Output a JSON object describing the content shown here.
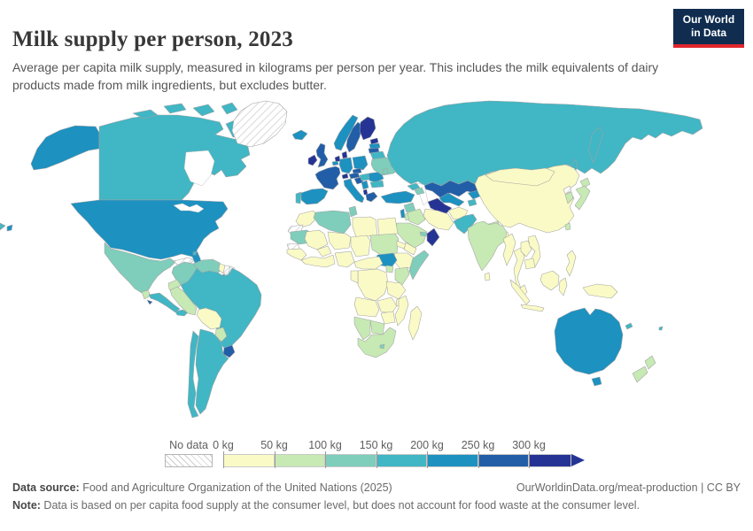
{
  "header": {
    "title": "Milk supply per person, 2023",
    "subtitle": "Average per capita milk supply, measured in kilograms per person per year. This includes the milk equivalents of dairy products made from milk ingredients, but excludes butter.",
    "logo": {
      "line1": "Our World",
      "line2": "in Data",
      "bg_color": "#102d50",
      "accent_color": "#e0262c"
    }
  },
  "legend": {
    "no_data_label": "No data",
    "tick_labels": [
      "0 kg",
      "50 kg",
      "100 kg",
      "150 kg",
      "200 kg",
      "250 kg",
      "300 kg"
    ]
  },
  "footer": {
    "source_label": "Data source:",
    "source_text": " Food and Agriculture Organization of the United Nations (2025)",
    "link_text": "OurWorldinData.org/meat-production",
    "license_text": " | CC BY",
    "note_label": "Note:",
    "note_text": " Data is based on per capita food supply at the consumer level, but does not account for food waste at the consumer level."
  },
  "chart_data": {
    "type": "heatmap",
    "subtype": "world-choropleth",
    "title": "Milk supply per person, 2023",
    "unit": "kilograms per person per year",
    "legend_position": "bottom",
    "no_data": {
      "label": "No data",
      "pattern": "diagonal-hatch"
    },
    "bins": [
      {
        "label": "0-50 kg",
        "color": "#fafac6"
      },
      {
        "label": "50-100 kg",
        "color": "#c7e9b4"
      },
      {
        "label": "100-150 kg",
        "color": "#7fcdbb"
      },
      {
        "label": "150-200 kg",
        "color": "#41b6c4"
      },
      {
        "label": "200-250 kg",
        "color": "#1d91c0"
      },
      {
        "label": "250-300 kg",
        "color": "#225ea8"
      },
      {
        "label": "300+ kg",
        "color": "#253494"
      }
    ],
    "regions": {
      "alaska": 4,
      "canada": 3,
      "arctic-island-1": 3,
      "arctic-island-2": 3,
      "arctic-island-3": 3,
      "arctic-island-4": 3,
      "arctic-island-5": 3,
      "greenland": -1,
      "usa": 4,
      "hawaii": 4,
      "mexico": 2,
      "guatemala": 1,
      "honduras-nicaragua": 3,
      "el-salvador": 5,
      "costa-rica-panama": 3,
      "cuba": -1,
      "jamaica": 0,
      "hispaniola": 0,
      "bahamas": 3,
      "trinidad": 4,
      "colombia": 2,
      "venezuela": 2,
      "guyana": 0,
      "suriname": -1,
      "french-guiana": -1,
      "ecuador": 1,
      "peru": 1,
      "brazil": 3,
      "bolivia": 0,
      "paraguay": 1,
      "uruguay": 5,
      "argentina": 3,
      "chile": 3,
      "iceland": 4,
      "ireland": 6,
      "uk": 5,
      "norway": 4,
      "sweden": 5,
      "finland": 6,
      "denmark": 6,
      "estonia": 6,
      "latvia": 4,
      "lithuania": 5,
      "belarus": 3,
      "netherlands": 6,
      "belgium": 4,
      "germany": 4,
      "poland": 4,
      "czechia": 5,
      "switzerland": 6,
      "austria": 5,
      "france": 5,
      "spain": 4,
      "portugal": 3,
      "italy": 4,
      "croatia": 5,
      "serbia": 4,
      "hungary": 3,
      "romania": 4,
      "bulgaria": 3,
      "albania": 6,
      "greece": 5,
      "ukraine": 2,
      "moldova": 2,
      "russia": 3,
      "russia-wrap": 3,
      "kamchatka": 3,
      "sakhalin": 3,
      "kazakhstan": 5,
      "uzbekistan": 4,
      "turkmenistan": 6,
      "kyrgyzstan": 4,
      "tajikistan": 3,
      "georgia": 3,
      "azerbaijan": 2,
      "turkey": 4,
      "syria": 2,
      "israel": 4,
      "jordan": 1,
      "iraq": 1,
      "iran": 0,
      "afghanistan": 0,
      "pakistan": 3,
      "saudi-arabia": 1,
      "yemen": 0,
      "oman": 6,
      "uae": 2,
      "egypt": 0,
      "china": 0,
      "mongolia": 0,
      "north-korea": -1,
      "south-korea": 1,
      "japan": 1,
      "japan-hokkaido": 1,
      "taiwan": 1,
      "nepal": 1,
      "bangladesh": 0,
      "india": 1,
      "sri-lanka": 0,
      "myanmar": 0,
      "thailand": 0,
      "laos": 0,
      "vietnam": 0,
      "cambodia": 0,
      "malaysia": 0,
      "sumatra": 0,
      "java": 0,
      "borneo": 0,
      "sulawesi": 0,
      "philippines": 0,
      "papua-new-guinea": 0,
      "morocco": 0,
      "western-sahara": -1,
      "algeria": 2,
      "tunisia": 2,
      "libya": 0,
      "mauritania": 2,
      "senegal": -1,
      "guinea-region": 0,
      "mali": 0,
      "burkina-faso": 0,
      "niger": 0,
      "nigeria": 0,
      "chad": 0,
      "sudan": 1,
      "eritrea": 0,
      "ethiopia": 0,
      "somalia": 2,
      "south-sudan": 4,
      "west-african-coast": 0,
      "cameroon-car": 0,
      "drc": 0,
      "gabon-congo": 0,
      "uganda": 1,
      "kenya": 1,
      "tanzania": 0,
      "angola": 0,
      "zambia": 0,
      "malawi": 0,
      "mozambique": 0,
      "zimbabwe": 0,
      "botswana": 1,
      "namibia": 1,
      "south-africa": 1,
      "lesotho": 2,
      "madagascar": 0,
      "australia": 4,
      "tasmania": 4,
      "new-zealand-north": 1,
      "new-zealand-south": 1,
      "new-caledonia": 3,
      "fiji": 3
    }
  }
}
